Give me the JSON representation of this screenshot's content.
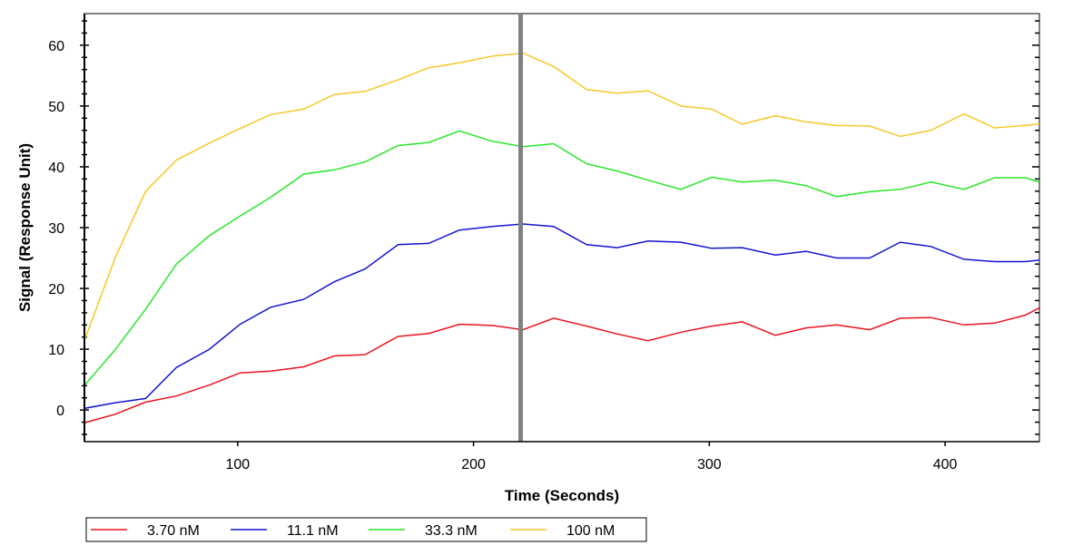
{
  "chart_data": {
    "type": "line",
    "title": "",
    "xlabel": "Time (Seconds)",
    "ylabel": "Signal (Response Unit)",
    "xlim": [
      35,
      440
    ],
    "ylim": [
      -5.2,
      65.2
    ],
    "xticks": [
      100,
      200,
      300,
      400
    ],
    "yticks": [
      0,
      10,
      20,
      30,
      40,
      50,
      60
    ],
    "grid": false,
    "legend_position": "bottom-left",
    "vertical_marker": {
      "x": 220,
      "color": "#808080"
    },
    "x": [
      34,
      48,
      61,
      74,
      88,
      101,
      114,
      128,
      141,
      154,
      168,
      181,
      194,
      208,
      221,
      234,
      248,
      261,
      274,
      288,
      301,
      314,
      328,
      341,
      354,
      368,
      381,
      394,
      408,
      421,
      434,
      448
    ],
    "series": [
      {
        "name": "3.70 nM",
        "color": "#e8141e",
        "values": [
          -2.2,
          -0.7,
          1.3,
          2.3,
          4.1,
          6.1,
          6.4,
          7.1,
          8.9,
          9.1,
          12.1,
          12.6,
          14.1,
          13.9,
          13.2,
          15.1,
          13.8,
          12.5,
          11.4,
          12.8,
          13.8,
          14.5,
          12.3,
          13.5,
          14.0,
          13.2,
          15.1,
          15.2,
          14.0,
          14.3,
          15.6,
          18.4
        ]
      },
      {
        "name": "11.1 nM",
        "color": "#1414d2",
        "values": [
          0.2,
          1.2,
          1.9,
          7.0,
          10.0,
          14.1,
          16.9,
          18.2,
          21.1,
          23.2,
          27.2,
          27.4,
          29.6,
          30.2,
          30.6,
          30.2,
          27.2,
          26.7,
          27.8,
          27.6,
          26.6,
          26.7,
          25.5,
          26.1,
          25.0,
          25.0,
          27.6,
          26.9,
          24.8,
          24.4,
          24.4,
          25.0
        ]
      },
      {
        "name": "33.3 nM",
        "color": "#28e628",
        "values": [
          3.6,
          9.9,
          16.6,
          24.0,
          28.7,
          31.9,
          35.0,
          38.8,
          39.5,
          40.8,
          43.5,
          44.0,
          45.9,
          44.2,
          43.3,
          43.8,
          40.5,
          39.3,
          37.8,
          36.3,
          38.3,
          37.5,
          37.8,
          36.9,
          35.1,
          35.9,
          36.3,
          37.5,
          36.3,
          38.2,
          38.2,
          36.6
        ]
      },
      {
        "name": "100 nM",
        "color": "#f5c828",
        "values": [
          10.4,
          25.0,
          36.0,
          41.1,
          43.9,
          46.3,
          48.6,
          49.5,
          51.9,
          52.4,
          54.3,
          56.3,
          57.1,
          58.2,
          58.7,
          56.5,
          52.7,
          52.1,
          52.5,
          50.0,
          49.5,
          47.0,
          48.4,
          47.4,
          46.8,
          46.7,
          45.0,
          46.0,
          48.7,
          46.4,
          46.8,
          47.5
        ]
      }
    ]
  }
}
